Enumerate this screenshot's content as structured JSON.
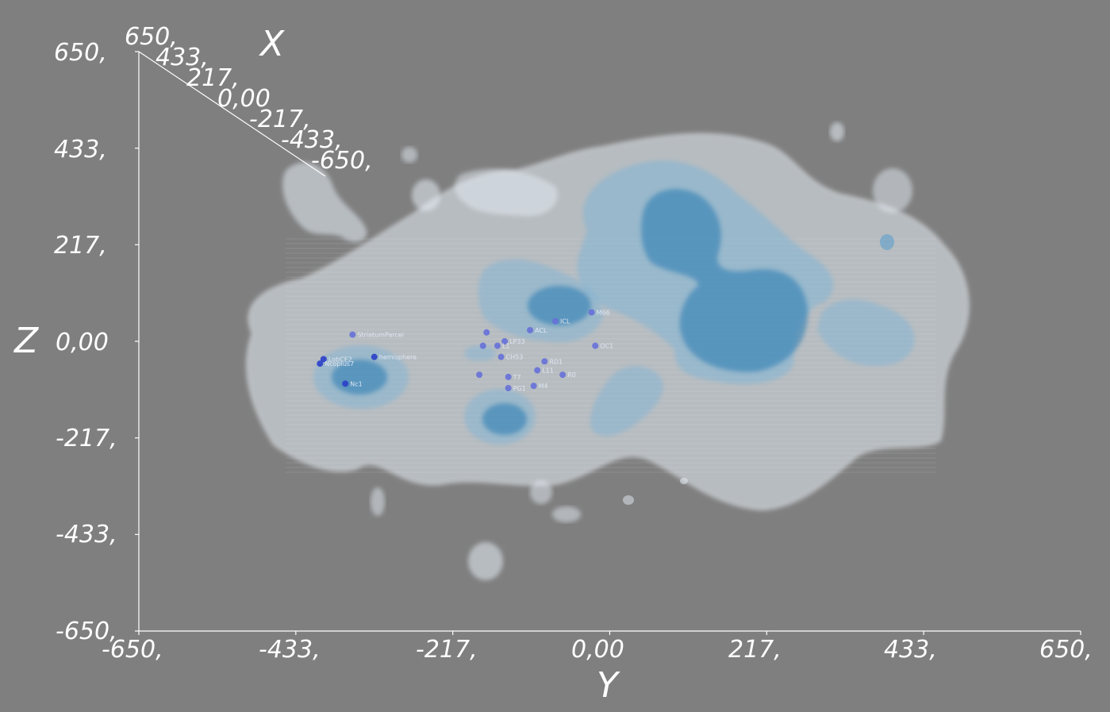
{
  "viewer": {
    "background": "#7f7f7f",
    "accent": "#4a95c4",
    "surface_color": "#e6eef5"
  },
  "chart_data": {
    "type": "scatter",
    "title": "",
    "projection": "3D isosurface volume, front view (Y horizontal, Z vertical, X receding)",
    "axes": {
      "x": {
        "label": "X",
        "range": [
          650,
          -650
        ],
        "ticks": [
          "650,",
          "433,",
          "217,",
          "0,00",
          "-217,",
          "-433,",
          "-650,"
        ]
      },
      "y": {
        "label": "Y",
        "range": [
          -650,
          650
        ],
        "ticks": [
          "-650,",
          "-433,",
          "-217,",
          "0,00",
          "217,",
          "433,",
          "650,"
        ]
      },
      "z": {
        "label": "Z",
        "range": [
          -650,
          650
        ],
        "ticks": [
          "650,",
          "433,",
          "217,",
          "0,00",
          "-217,",
          "-433,",
          "-650,"
        ]
      }
    },
    "isosurfaces": [
      {
        "level": "outer",
        "color": "#e6eef5"
      },
      {
        "level": "middle",
        "color": "#7fb4d6"
      },
      {
        "level": "inner",
        "color": "#2f7fb4"
      }
    ],
    "markers": [
      {
        "label": "StriatumParcel",
        "y": -355,
        "z": 15
      },
      {
        "label": "LobCE2",
        "y": -395,
        "z": -40
      },
      {
        "label": "Ncoplus7",
        "y": -400,
        "z": -50
      },
      {
        "label": "hemisphere",
        "y": -325,
        "z": -35
      },
      {
        "label": "Nc1",
        "y": -365,
        "z": -95
      },
      {
        "label": "ICL",
        "y": -75,
        "z": 45
      },
      {
        "label": "M66",
        "y": -25,
        "z": 65
      },
      {
        "label": "",
        "y": -170,
        "z": 20
      },
      {
        "label": "ACL",
        "y": -110,
        "z": 25
      },
      {
        "label": "LP33",
        "y": -145,
        "z": 0
      },
      {
        "label": "",
        "y": -175,
        "z": -10
      },
      {
        "label": "L1",
        "y": -155,
        "z": -10
      },
      {
        "label": "CH53",
        "y": -150,
        "z": -35
      },
      {
        "label": "OC1",
        "y": -20,
        "z": -10
      },
      {
        "label": "RD1",
        "y": -90,
        "z": -45
      },
      {
        "label": "L11",
        "y": -100,
        "z": -65
      },
      {
        "label": "R0",
        "y": -65,
        "z": -75
      },
      {
        "label": "T7",
        "y": -140,
        "z": -80
      },
      {
        "label": "",
        "y": -180,
        "z": -75
      },
      {
        "label": "PG1",
        "y": -140,
        "z": -105
      },
      {
        "label": "M4",
        "y": -105,
        "z": -100
      }
    ]
  }
}
